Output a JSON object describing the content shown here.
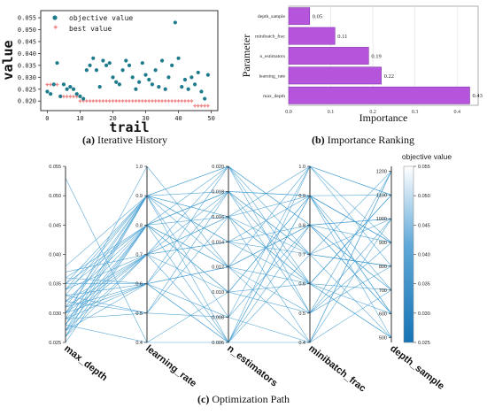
{
  "captions": {
    "a": {
      "letter": "(a)",
      "text": " Iterative History"
    },
    "b": {
      "letter": "(b)",
      "text": " Importance Ranking"
    },
    "c": {
      "letter": "(c)",
      "text": " Optimization Path"
    }
  },
  "colors": {
    "objective": "#1e7b8c",
    "best": "#f08a8a",
    "bar": "#b455dc",
    "line": "#3f9bd1"
  },
  "chart_data": [
    {
      "type": "scatter",
      "xlabel": "trail",
      "ylabel": "value",
      "xlim": [
        -2,
        52
      ],
      "ylim": [
        0.016,
        0.058
      ],
      "xticks": [
        "0",
        "10",
        "20",
        "30",
        "40",
        "50"
      ],
      "yticks": [
        "0.020",
        "0.025",
        "0.030",
        "0.035",
        "0.040",
        "0.045",
        "0.050",
        "0.055"
      ],
      "legend": [
        "objective value",
        "best value"
      ],
      "series": [
        {
          "name": "objective value",
          "x": [
            0,
            1,
            2,
            3,
            4,
            5,
            6,
            7,
            8,
            9,
            10,
            11,
            12,
            13,
            14,
            15,
            16,
            17,
            18,
            19,
            20,
            21,
            22,
            23,
            24,
            25,
            26,
            27,
            28,
            29,
            30,
            31,
            32,
            33,
            34,
            35,
            36,
            37,
            38,
            39,
            40,
            41,
            42,
            43,
            44,
            45,
            46,
            47,
            48,
            49
          ],
          "y": [
            0.024,
            0.023,
            0.027,
            0.036,
            0.022,
            0.027,
            0.025,
            0.026,
            0.025,
            0.023,
            0.022,
            0.021,
            0.033,
            0.035,
            0.038,
            0.033,
            0.026,
            0.037,
            0.035,
            0.036,
            0.03,
            0.028,
            0.027,
            0.033,
            0.037,
            0.035,
            0.03,
            0.025,
            0.028,
            0.036,
            0.031,
            0.029,
            0.027,
            0.033,
            0.026,
            0.037,
            0.025,
            0.03,
            0.035,
            0.053,
            0.038,
            0.026,
            0.029,
            0.025,
            0.03,
            0.027,
            0.032,
            0.024,
            0.021,
            0.031
          ]
        },
        {
          "name": "best value",
          "x": [
            0,
            1,
            2,
            3,
            4,
            5,
            6,
            7,
            8,
            9,
            10,
            11,
            12,
            13,
            14,
            15,
            16,
            17,
            18,
            19,
            20,
            21,
            22,
            23,
            24,
            25,
            26,
            27,
            28,
            29,
            30,
            31,
            32,
            33,
            34,
            35,
            36,
            37,
            38,
            39,
            40,
            41,
            42,
            43,
            44,
            45,
            46,
            47,
            48,
            49
          ],
          "y": [
            0.027,
            0.027,
            0.027,
            0.027,
            0.022,
            0.022,
            0.022,
            0.022,
            0.022,
            0.022,
            0.02,
            0.02,
            0.02,
            0.02,
            0.02,
            0.02,
            0.02,
            0.02,
            0.02,
            0.02,
            0.02,
            0.02,
            0.02,
            0.02,
            0.02,
            0.02,
            0.02,
            0.02,
            0.02,
            0.02,
            0.02,
            0.02,
            0.02,
            0.02,
            0.02,
            0.02,
            0.02,
            0.02,
            0.02,
            0.02,
            0.02,
            0.02,
            0.02,
            0.02,
            0.02,
            0.018,
            0.018,
            0.018,
            0.018,
            0.018
          ]
        }
      ]
    },
    {
      "type": "bar",
      "orientation": "horizontal",
      "xlabel": "Importance",
      "ylabel": "Parameter",
      "xlim": [
        0,
        0.45
      ],
      "xticks": [
        "0.0",
        "0.1",
        "0.2",
        "0.3",
        "0.4"
      ],
      "categories": [
        "depth_sample",
        "minibatch_frac",
        "n_estimators",
        "learning_rate",
        "max_depth"
      ],
      "values": [
        0.05,
        0.11,
        0.19,
        0.22,
        0.43
      ],
      "value_labels": [
        "0.05",
        "0.11",
        "0.19",
        "0.22",
        "0.43"
      ]
    },
    {
      "type": "parallel_coordinates",
      "axes": [
        {
          "name": "max_depth",
          "range": [
            0.025,
            0.055
          ],
          "ticks": [
            "0.055",
            "0.050",
            "0.045",
            "0.040",
            "0.035",
            "0.030",
            "0.025"
          ]
        },
        {
          "name": "learning_rate",
          "range": [
            0.4,
            1.0
          ],
          "ticks": [
            "1.0",
            "0.9",
            "0.8",
            "0.7",
            "0.6",
            "0.5",
            "0.4"
          ]
        },
        {
          "name": "n_estimators",
          "range": [
            0.006,
            0.02
          ],
          "ticks": [
            "0.020",
            "0.018",
            "0.016",
            "0.014",
            "0.012",
            "0.010",
            "0.008",
            "0.006"
          ]
        },
        {
          "name": "minibatch_frac",
          "range": [
            0.4,
            1.0
          ],
          "ticks": [
            "1.0",
            "0.9",
            "0.8",
            "0.7",
            "0.6",
            "0.5",
            "0.4"
          ]
        },
        {
          "name": "depth_sample",
          "range": [
            480,
            1220
          ],
          "ticks": [
            "1200",
            "1100",
            "1000",
            "900",
            "800",
            "700",
            "600",
            "500"
          ]
        }
      ],
      "colorbar": {
        "title": "objective value",
        "range": [
          0.025,
          0.055
        ],
        "ticks": [
          "0.055",
          "0.050",
          "0.045",
          "0.040",
          "0.035",
          "0.030",
          "0.025"
        ]
      },
      "lines": [
        [
          0.026,
          0.8,
          0.006,
          0.9,
          900
        ],
        [
          0.027,
          0.9,
          0.016,
          1.0,
          1100
        ],
        [
          0.028,
          0.4,
          0.01,
          0.6,
          700
        ],
        [
          0.029,
          1.0,
          0.012,
          0.5,
          1200
        ],
        [
          0.03,
          0.7,
          0.02,
          0.8,
          600
        ],
        [
          0.031,
          0.6,
          0.008,
          0.4,
          1000
        ],
        [
          0.032,
          0.5,
          0.018,
          0.7,
          800
        ],
        [
          0.033,
          0.9,
          0.014,
          0.9,
          500
        ],
        [
          0.034,
          0.7,
          0.006,
          1.0,
          900
        ],
        [
          0.035,
          0.8,
          0.016,
          0.6,
          1100
        ],
        [
          0.036,
          0.6,
          0.012,
          0.8,
          700
        ],
        [
          0.026,
          0.9,
          0.02,
          0.7,
          1000
        ],
        [
          0.027,
          0.7,
          0.01,
          0.9,
          600
        ],
        [
          0.028,
          0.8,
          0.018,
          0.5,
          800
        ],
        [
          0.029,
          0.6,
          0.006,
          0.4,
          1200
        ],
        [
          0.03,
          0.9,
          0.016,
          0.9,
          900
        ],
        [
          0.031,
          0.7,
          0.014,
          0.6,
          500
        ],
        [
          0.032,
          0.8,
          0.012,
          1.0,
          1100
        ],
        [
          0.033,
          0.5,
          0.008,
          0.8,
          700
        ],
        [
          0.034,
          0.9,
          0.02,
          0.5,
          1000
        ],
        [
          0.035,
          0.6,
          0.018,
          0.7,
          800
        ],
        [
          0.036,
          0.8,
          0.01,
          0.9,
          600
        ],
        [
          0.037,
          0.7,
          0.016,
          0.4,
          1200
        ],
        [
          0.053,
          0.4,
          0.006,
          0.8,
          900
        ],
        [
          0.038,
          0.9,
          0.012,
          0.6,
          1100
        ],
        [
          0.025,
          0.8,
          0.018,
          0.9,
          700
        ],
        [
          0.026,
          0.7,
          0.014,
          0.7,
          500
        ],
        [
          0.027,
          0.6,
          0.02,
          0.8,
          1000
        ],
        [
          0.028,
          0.9,
          0.008,
          1.0,
          800
        ],
        [
          0.029,
          0.5,
          0.016,
          0.6,
          600
        ],
        [
          0.03,
          0.8,
          0.01,
          0.5,
          900
        ],
        [
          0.031,
          0.9,
          0.006,
          0.7,
          1200
        ],
        [
          0.032,
          0.7,
          0.018,
          0.9,
          1100
        ],
        [
          0.033,
          0.6,
          0.012,
          0.4,
          700
        ],
        [
          0.034,
          0.8,
          0.02,
          0.6,
          500
        ],
        [
          0.035,
          0.9,
          0.014,
          0.8,
          1000
        ],
        [
          0.029,
          0.7,
          0.016,
          0.7,
          800
        ],
        [
          0.03,
          0.6,
          0.006,
          0.9,
          900
        ],
        [
          0.027,
          0.8,
          0.012,
          0.8,
          600
        ],
        [
          0.028,
          0.9,
          0.018,
          0.6,
          1100
        ]
      ]
    }
  ]
}
